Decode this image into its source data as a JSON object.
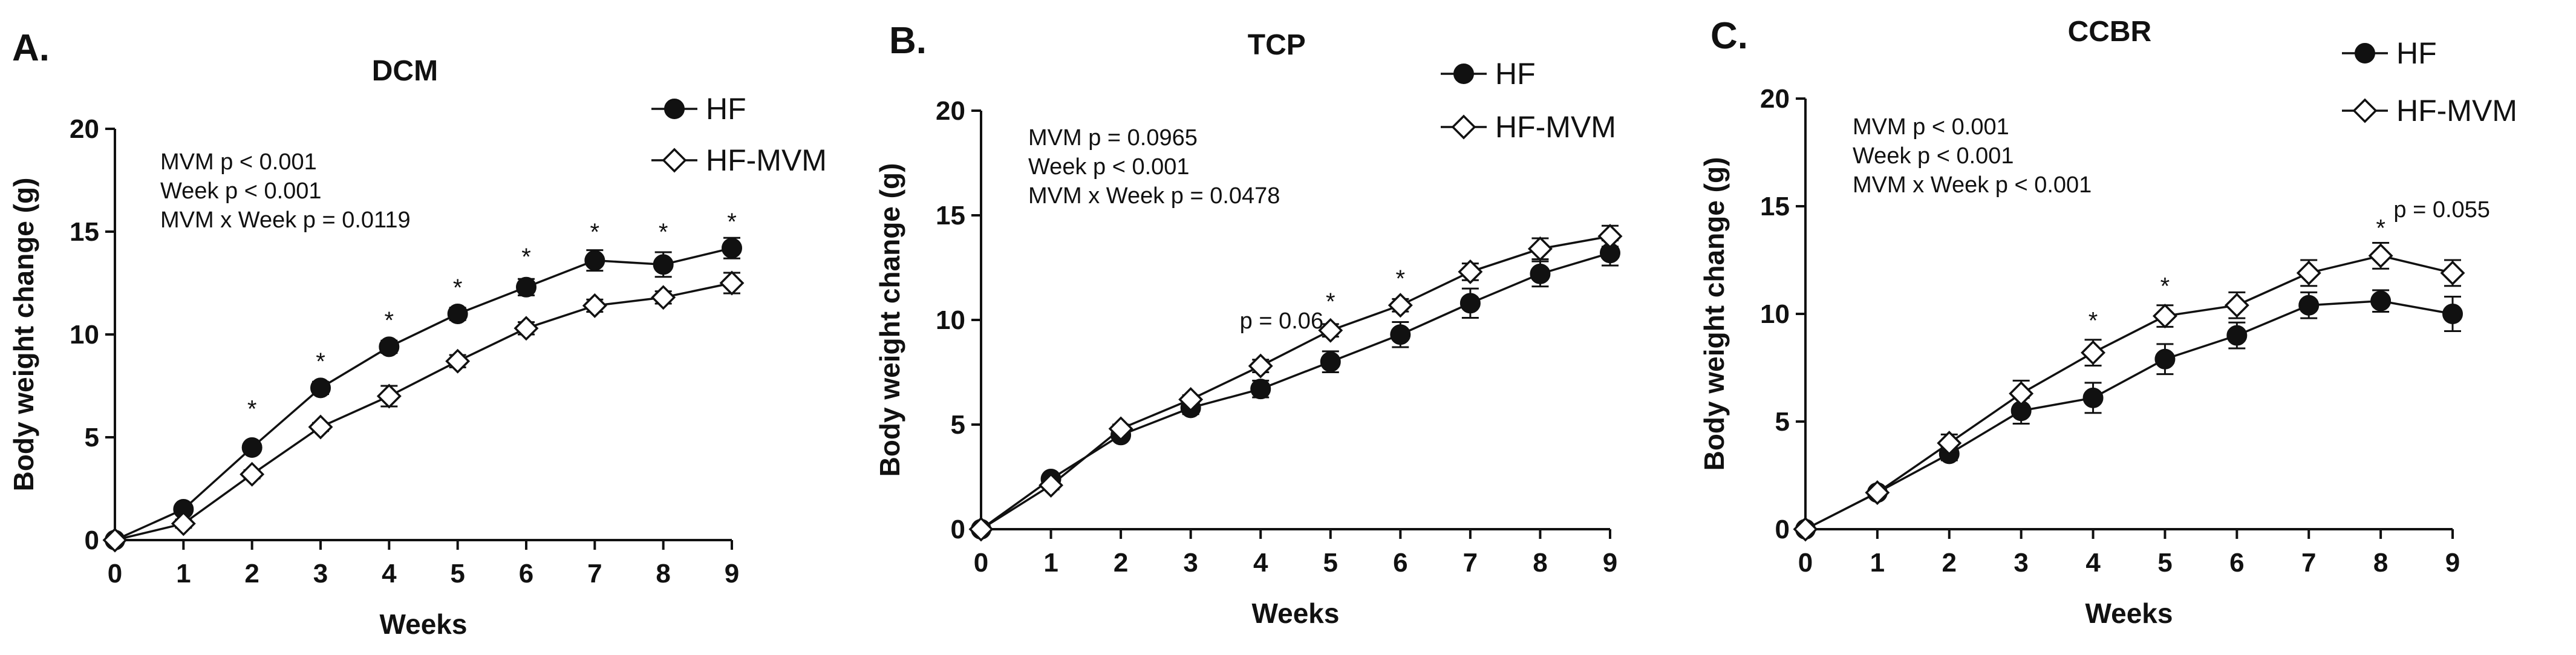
{
  "colors": {
    "ink": "#111111",
    "background": "#ffffff",
    "hf_marker": "#111111",
    "hf_mvm_marker": "#ffffff"
  },
  "chart_data": [
    {
      "panel": "A.",
      "type": "line",
      "title": "DCM",
      "xlabel": "Weeks",
      "ylabel": "Body weight change (g)",
      "x": [
        0,
        1,
        2,
        3,
        4,
        5,
        6,
        7,
        8,
        9
      ],
      "xlim": [
        0,
        9
      ],
      "ylim": [
        0,
        20
      ],
      "yticks": [
        0,
        5,
        10,
        15,
        20
      ],
      "series": [
        {
          "name": "HF",
          "marker": "filled-circle",
          "values": [
            0,
            1.5,
            4.5,
            7.4,
            9.4,
            11.0,
            12.3,
            13.6,
            13.4,
            14.2
          ],
          "err": [
            0,
            0.2,
            0.2,
            0.3,
            0.3,
            0.3,
            0.4,
            0.5,
            0.6,
            0.5
          ]
        },
        {
          "name": "HF-MVM",
          "marker": "open-diamond",
          "values": [
            0,
            0.8,
            3.2,
            5.5,
            7.0,
            8.7,
            10.3,
            11.4,
            11.8,
            12.5
          ],
          "err": [
            0,
            0.2,
            0.2,
            0.2,
            0.5,
            0.3,
            0.3,
            0.3,
            0.3,
            0.5
          ]
        }
      ],
      "stats": [
        "MVM p < 0.001",
        "Week p < 0.001",
        "MVM x Week p = 0.0119"
      ],
      "significance": [
        {
          "x": 2,
          "y": 6.4,
          "label": "*"
        },
        {
          "x": 3,
          "y": 8.7,
          "label": "*"
        },
        {
          "x": 4,
          "y": 10.7,
          "label": "*"
        },
        {
          "x": 5,
          "y": 12.3,
          "label": "*"
        },
        {
          "x": 6,
          "y": 13.8,
          "label": "*"
        },
        {
          "x": 7,
          "y": 15.0,
          "label": "*"
        },
        {
          "x": 8,
          "y": 15.0,
          "label": "*"
        },
        {
          "x": 9,
          "y": 15.5,
          "label": "*"
        }
      ],
      "annotations": []
    },
    {
      "panel": "B.",
      "type": "line",
      "title": "TCP",
      "xlabel": "Weeks",
      "ylabel": "Body weight change (g)",
      "x": [
        0,
        1,
        2,
        3,
        4,
        5,
        6,
        7,
        8,
        9
      ],
      "xlim": [
        0,
        9
      ],
      "ylim": [
        0,
        20
      ],
      "yticks": [
        0,
        5,
        10,
        15,
        20
      ],
      "series": [
        {
          "name": "HF",
          "marker": "filled-circle",
          "values": [
            0,
            2.4,
            4.5,
            5.8,
            6.7,
            8.0,
            9.3,
            10.8,
            12.2,
            13.2
          ],
          "err": [
            0,
            0.2,
            0.2,
            0.3,
            0.4,
            0.5,
            0.6,
            0.7,
            0.6,
            0.6
          ]
        },
        {
          "name": "HF-MVM",
          "marker": "open-diamond",
          "values": [
            0,
            2.1,
            4.8,
            6.2,
            7.8,
            9.5,
            10.7,
            12.3,
            13.4,
            14.0
          ],
          "err": [
            0,
            0.2,
            0.2,
            0.2,
            0.3,
            0.3,
            0.3,
            0.4,
            0.5,
            0.5
          ]
        }
      ],
      "stats": [
        "MVM p = 0.0965",
        "Week p < 0.001",
        "MVM x Week p = 0.0478"
      ],
      "significance": [
        {
          "x": 5,
          "y": 10.9,
          "label": "*"
        },
        {
          "x": 6,
          "y": 12.0,
          "label": "*"
        }
      ],
      "annotations": [
        {
          "x": 4.3,
          "y": 9.6,
          "label": "p = 0.06"
        }
      ]
    },
    {
      "panel": "C.",
      "type": "line",
      "title": "CCBR",
      "xlabel": "Weeks",
      "ylabel": "Body weight change (g)",
      "x": [
        0,
        1,
        2,
        3,
        4,
        5,
        6,
        7,
        8,
        9
      ],
      "xlim": [
        0,
        9
      ],
      "ylim": [
        0,
        20
      ],
      "yticks": [
        0,
        5,
        10,
        15,
        20
      ],
      "series": [
        {
          "name": "HF",
          "marker": "filled-circle",
          "values": [
            0,
            1.7,
            3.5,
            5.5,
            6.1,
            7.9,
            9.0,
            10.4,
            10.6,
            10.0
          ],
          "err": [
            0,
            0.2,
            0.3,
            0.6,
            0.7,
            0.7,
            0.6,
            0.6,
            0.5,
            0.8
          ]
        },
        {
          "name": "HF-MVM",
          "marker": "open-diamond",
          "values": [
            0,
            1.7,
            4.0,
            6.3,
            8.2,
            9.9,
            10.4,
            11.9,
            12.7,
            11.9
          ],
          "err": [
            0,
            0.2,
            0.4,
            0.6,
            0.6,
            0.5,
            0.6,
            0.6,
            0.6,
            0.6
          ]
        }
      ],
      "stats": [
        "MVM p < 0.001",
        "Week p < 0.001",
        "MVM x Week p < 0.001"
      ],
      "significance": [
        {
          "x": 4,
          "y": 9.7,
          "label": "*"
        },
        {
          "x": 5,
          "y": 11.3,
          "label": "*"
        },
        {
          "x": 8,
          "y": 14.0,
          "label": "*"
        }
      ],
      "annotations": [
        {
          "x": 8.85,
          "y": 14.5,
          "label": "p = 0.055"
        }
      ]
    }
  ]
}
